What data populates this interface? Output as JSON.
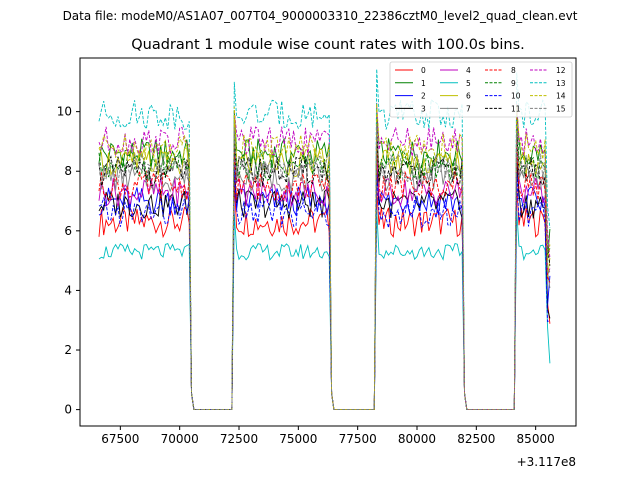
{
  "suptitle": "Data file: modeM0/AS1A07_007T04_9000003310_22386cztM0_level2_quad_clean.evt",
  "chart_data": {
    "type": "line",
    "title": "Quadrant 1 module wise count rates with 100.0s bins.",
    "xlabel": "",
    "ylabel": "",
    "x_offset_label": "+3.117e8",
    "xlim": [
      65800,
      86700
    ],
    "ylim": [
      -0.55,
      11.8
    ],
    "xticks": [
      67500,
      70000,
      72500,
      75000,
      77500,
      80000,
      82500,
      85000
    ],
    "xtick_labels": [
      "67500",
      "70000",
      "72500",
      "75000",
      "77500",
      "80000",
      "82500",
      "85000"
    ],
    "yticks": [
      0,
      2,
      4,
      6,
      8,
      10
    ],
    "ytick_labels": [
      "0",
      "2",
      "4",
      "6",
      "8",
      "10"
    ],
    "legend_position": "top-right",
    "x_start": 66600,
    "x_step": 100,
    "segments": [
      {
        "on_from": 66600,
        "on_to": 70400,
        "off_from": 70600,
        "off_to": 72200
      },
      {
        "on_from": 72300,
        "on_to": 76300,
        "off_from": 76500,
        "off_to": 78200
      },
      {
        "on_from": 78300,
        "on_to": 81900,
        "off_from": 82100,
        "off_to": 84100
      },
      {
        "on_from": 84200,
        "on_to": 85600,
        "off_from": null,
        "off_to": null
      }
    ],
    "series": [
      {
        "name": "0",
        "color": "#ff0000",
        "dash": "solid",
        "level": 6.3
      },
      {
        "name": "1",
        "color": "#008000",
        "dash": "solid",
        "level": 8.6
      },
      {
        "name": "2",
        "color": "#0000ff",
        "dash": "solid",
        "level": 7.0
      },
      {
        "name": "3",
        "color": "#000000",
        "dash": "solid",
        "level": 6.9
      },
      {
        "name": "4",
        "color": "#bf00bf",
        "dash": "solid",
        "level": 7.3
      },
      {
        "name": "5",
        "color": "#00bfbf",
        "dash": "solid",
        "level": 5.3
      },
      {
        "name": "6",
        "color": "#bfbf00",
        "dash": "solid",
        "level": 8.3
      },
      {
        "name": "7",
        "color": "#808080",
        "dash": "solid",
        "level": 7.8
      },
      {
        "name": "8",
        "color": "#ff0000",
        "dash": "dashed",
        "level": 7.5
      },
      {
        "name": "9",
        "color": "#008000",
        "dash": "dashed",
        "level": 8.2
      },
      {
        "name": "10",
        "color": "#0000ff",
        "dash": "dashed",
        "level": 6.6
      },
      {
        "name": "11",
        "color": "#000000",
        "dash": "dashed",
        "level": 8.0
      },
      {
        "name": "12",
        "color": "#bf00bf",
        "dash": "dashed",
        "level": 9.0
      },
      {
        "name": "13",
        "color": "#00bfbf",
        "dash": "dashed",
        "level": 9.9
      },
      {
        "name": "14",
        "color": "#bfbf00",
        "dash": "dashed",
        "level": 8.8
      },
      {
        "name": "15",
        "color": "#808080",
        "dash": "dashed",
        "level": 8.1
      }
    ]
  }
}
